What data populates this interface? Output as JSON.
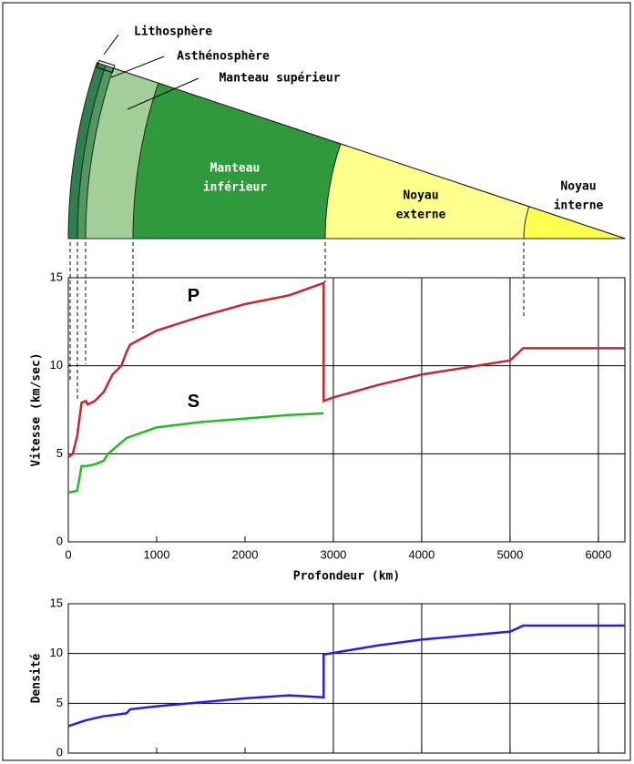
{
  "diagram": {
    "labels": [
      {
        "lines": [
          "Lithosphère"
        ]
      },
      {
        "lines": [
          "Asthénosphère"
        ]
      },
      {
        "lines": [
          "Manteau supérieur"
        ]
      },
      {
        "lines": [
          "Manteau",
          "inférieur"
        ]
      },
      {
        "lines": [
          "Noyau",
          "externe"
        ]
      },
      {
        "lines": [
          "Noyau",
          "interne"
        ]
      }
    ]
  },
  "chart_data": [
    {
      "type": "line",
      "xlabel": "Profondeur (km)",
      "ylabel": "Vitesse (km/sec)",
      "xlim": [
        0,
        6300
      ],
      "xticks": [
        0,
        1000,
        2000,
        3000,
        4000,
        5000,
        6000
      ],
      "ylim": [
        0,
        15
      ],
      "yticks": [
        0,
        5,
        10,
        15
      ],
      "grid": true,
      "series": [
        {
          "name": "P",
          "color": "#c0282d",
          "x": [
            0,
            50,
            100,
            150,
            200,
            220,
            300,
            400,
            500,
            600,
            660,
            700,
            1000,
            1500,
            2000,
            2500,
            2890,
            2890,
            3000,
            3500,
            4000,
            4500,
            5000,
            5150,
            6300
          ],
          "values": [
            4.8,
            5.0,
            6.0,
            7.9,
            8.0,
            7.8,
            8.0,
            8.5,
            9.5,
            10.0,
            10.8,
            11.2,
            12.0,
            12.8,
            13.5,
            14.0,
            14.7,
            8.0,
            8.2,
            8.9,
            9.5,
            9.9,
            10.3,
            11.0,
            11.0
          ]
        },
        {
          "name": "S",
          "color": "#22bb22",
          "x": [
            0,
            100,
            150,
            200,
            300,
            400,
            450,
            660,
            1000,
            1500,
            2000,
            2500,
            2890
          ],
          "values": [
            2.8,
            2.9,
            4.3,
            4.3,
            4.4,
            4.6,
            5.0,
            5.9,
            6.5,
            6.8,
            7.0,
            7.2,
            7.3
          ]
        }
      ]
    },
    {
      "type": "line",
      "ylabel": "Densité",
      "xlim": [
        0,
        6300
      ],
      "xticks": [
        0,
        1000,
        2000,
        3000,
        4000,
        5000,
        6000
      ],
      "ylim": [
        0,
        15
      ],
      "yticks": [
        0,
        5,
        10,
        15
      ],
      "grid": true,
      "series": [
        {
          "color": "#2222dd",
          "x": [
            0,
            200,
            400,
            660,
            700,
            1000,
            1500,
            2000,
            2500,
            2890,
            2890,
            3500,
            4000,
            4500,
            5000,
            5150,
            6300
          ],
          "values": [
            2.7,
            3.3,
            3.7,
            4.0,
            4.4,
            4.7,
            5.1,
            5.5,
            5.8,
            5.6,
            9.9,
            10.8,
            11.4,
            11.8,
            12.2,
            12.8,
            12.8
          ]
        }
      ]
    }
  ]
}
